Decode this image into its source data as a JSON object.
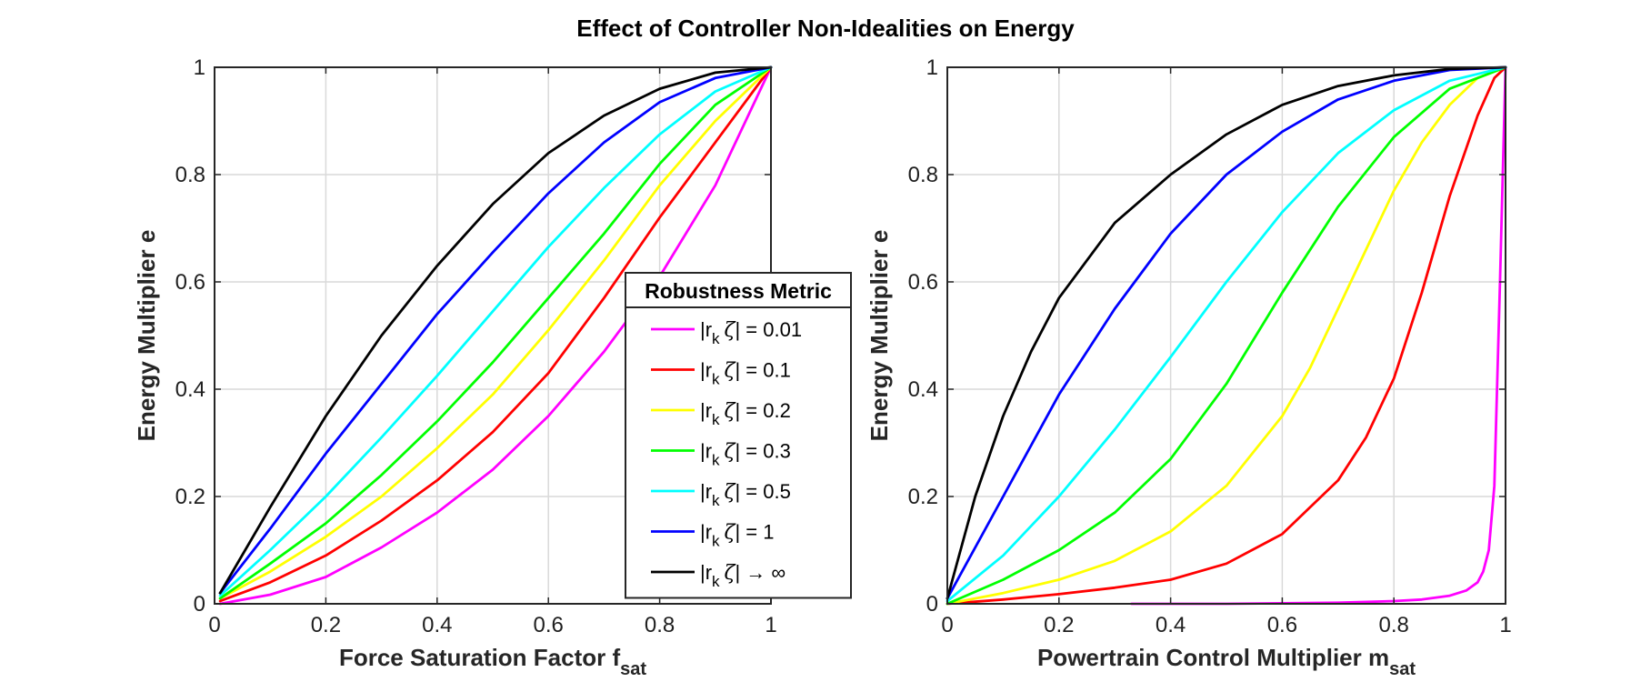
{
  "figure": {
    "title": "Effect of Controller Non-Idealities on Energy"
  },
  "legend": {
    "title": "Robustness Metric",
    "placement": "inside-left-panel-lower-right",
    "entries": [
      {
        "prefix": "|r",
        "sub": "k",
        "zeta": "ζ",
        "suffix": "| = 0.01",
        "color": "#ff00ff"
      },
      {
        "prefix": "|r",
        "sub": "k",
        "zeta": "ζ",
        "suffix": "| = 0.1",
        "color": "#ff0000"
      },
      {
        "prefix": "|r",
        "sub": "k",
        "zeta": "ζ",
        "suffix": "| = 0.2",
        "color": "#ffff00"
      },
      {
        "prefix": "|r",
        "sub": "k",
        "zeta": "ζ",
        "suffix": "| = 0.3",
        "color": "#00ff00"
      },
      {
        "prefix": "|r",
        "sub": "k",
        "zeta": "ζ",
        "suffix": "| = 0.5",
        "color": "#00ffff"
      },
      {
        "prefix": "|r",
        "sub": "k",
        "zeta": "ζ",
        "suffix": "| = 1",
        "color": "#0000ff"
      },
      {
        "prefix": "|r",
        "sub": "k",
        "zeta": "ζ",
        "suffix": "| → ∞",
        "color": "#000000"
      }
    ]
  },
  "chart_data": [
    {
      "type": "line",
      "xlabel_main": "Force Saturation Factor f",
      "xlabel_sub": "sat",
      "ylabel": "Energy Multiplier e",
      "xlim": [
        0,
        1
      ],
      "ylim": [
        0,
        1
      ],
      "xticks": [
        "0",
        "0.2",
        "0.4",
        "0.6",
        "0.8",
        "1"
      ],
      "yticks": [
        "0",
        "0.2",
        "0.4",
        "0.6",
        "0.8",
        "1"
      ],
      "grid": true,
      "series": [
        {
          "color": "#ff00ff",
          "x": [
            0.01,
            0.1,
            0.2,
            0.3,
            0.4,
            0.5,
            0.6,
            0.7,
            0.8,
            0.9,
            1.0
          ],
          "y": [
            0.0,
            0.017,
            0.05,
            0.105,
            0.17,
            0.25,
            0.35,
            0.47,
            0.61,
            0.78,
            1.0
          ]
        },
        {
          "color": "#ff0000",
          "x": [
            0.01,
            0.1,
            0.2,
            0.3,
            0.4,
            0.5,
            0.6,
            0.7,
            0.8,
            0.9,
            1.0
          ],
          "y": [
            0.005,
            0.04,
            0.09,
            0.155,
            0.23,
            0.32,
            0.43,
            0.57,
            0.72,
            0.86,
            1.0
          ]
        },
        {
          "color": "#ffff00",
          "x": [
            0.01,
            0.1,
            0.2,
            0.3,
            0.4,
            0.5,
            0.6,
            0.7,
            0.8,
            0.9,
            1.0
          ],
          "y": [
            0.01,
            0.06,
            0.125,
            0.2,
            0.29,
            0.39,
            0.51,
            0.64,
            0.78,
            0.9,
            1.0
          ]
        },
        {
          "color": "#00ff00",
          "x": [
            0.01,
            0.1,
            0.2,
            0.3,
            0.4,
            0.5,
            0.6,
            0.7,
            0.8,
            0.9,
            1.0
          ],
          "y": [
            0.01,
            0.075,
            0.15,
            0.24,
            0.34,
            0.45,
            0.57,
            0.69,
            0.82,
            0.93,
            1.0
          ]
        },
        {
          "color": "#00ffff",
          "x": [
            0.01,
            0.1,
            0.2,
            0.3,
            0.4,
            0.5,
            0.6,
            0.7,
            0.8,
            0.9,
            1.0
          ],
          "y": [
            0.015,
            0.1,
            0.2,
            0.31,
            0.425,
            0.545,
            0.665,
            0.775,
            0.875,
            0.955,
            1.0
          ]
        },
        {
          "color": "#0000ff",
          "x": [
            0.01,
            0.1,
            0.2,
            0.3,
            0.4,
            0.5,
            0.6,
            0.7,
            0.8,
            0.9,
            1.0
          ],
          "y": [
            0.02,
            0.14,
            0.28,
            0.41,
            0.54,
            0.655,
            0.765,
            0.86,
            0.935,
            0.98,
            1.0
          ]
        },
        {
          "color": "#000000",
          "x": [
            0.01,
            0.1,
            0.2,
            0.3,
            0.4,
            0.5,
            0.6,
            0.7,
            0.8,
            0.9,
            1.0
          ],
          "y": [
            0.02,
            0.18,
            0.35,
            0.5,
            0.63,
            0.745,
            0.84,
            0.91,
            0.96,
            0.99,
            1.0
          ]
        }
      ]
    },
    {
      "type": "line",
      "xlabel_main": "Powertrain Control Multiplier m",
      "xlabel_sub": "sat",
      "ylabel": "Energy Multiplier e",
      "xlim": [
        0,
        1
      ],
      "ylim": [
        0,
        1
      ],
      "xticks": [
        "0",
        "0.2",
        "0.4",
        "0.6",
        "0.8",
        "1"
      ],
      "yticks": [
        "0",
        "0.2",
        "0.4",
        "0.6",
        "0.8",
        "1"
      ],
      "grid": true,
      "series": [
        {
          "color": "#ff00ff",
          "x": [
            0.33,
            0.5,
            0.6,
            0.7,
            0.8,
            0.85,
            0.9,
            0.93,
            0.95,
            0.96,
            0.97,
            0.98,
            0.99,
            1.0
          ],
          "y": [
            0.0,
            0.0,
            0.001,
            0.002,
            0.005,
            0.008,
            0.015,
            0.025,
            0.04,
            0.06,
            0.1,
            0.22,
            0.6,
            1.0
          ]
        },
        {
          "color": "#ff0000",
          "x": [
            0.0,
            0.1,
            0.2,
            0.3,
            0.4,
            0.5,
            0.6,
            0.7,
            0.75,
            0.8,
            0.85,
            0.9,
            0.95,
            0.98,
            1.0
          ],
          "y": [
            0.0,
            0.008,
            0.018,
            0.03,
            0.045,
            0.075,
            0.13,
            0.23,
            0.31,
            0.42,
            0.58,
            0.76,
            0.91,
            0.98,
            1.0
          ]
        },
        {
          "color": "#ffff00",
          "x": [
            0.0,
            0.1,
            0.2,
            0.3,
            0.4,
            0.5,
            0.6,
            0.65,
            0.7,
            0.75,
            0.8,
            0.85,
            0.9,
            0.95,
            1.0
          ],
          "y": [
            0.0,
            0.02,
            0.045,
            0.08,
            0.135,
            0.22,
            0.35,
            0.44,
            0.55,
            0.66,
            0.77,
            0.86,
            0.93,
            0.98,
            1.0
          ]
        },
        {
          "color": "#00ff00",
          "x": [
            0.0,
            0.1,
            0.2,
            0.3,
            0.4,
            0.5,
            0.6,
            0.7,
            0.8,
            0.9,
            1.0
          ],
          "y": [
            0.0,
            0.045,
            0.1,
            0.17,
            0.27,
            0.41,
            0.58,
            0.74,
            0.87,
            0.96,
            1.0
          ]
        },
        {
          "color": "#00ffff",
          "x": [
            0.0,
            0.1,
            0.2,
            0.3,
            0.4,
            0.5,
            0.6,
            0.7,
            0.8,
            0.9,
            1.0
          ],
          "y": [
            0.005,
            0.09,
            0.2,
            0.325,
            0.46,
            0.6,
            0.73,
            0.84,
            0.92,
            0.975,
            1.0
          ]
        },
        {
          "color": "#0000ff",
          "x": [
            0.0,
            0.1,
            0.2,
            0.3,
            0.4,
            0.5,
            0.6,
            0.7,
            0.8,
            0.9,
            1.0
          ],
          "y": [
            0.01,
            0.2,
            0.39,
            0.55,
            0.69,
            0.8,
            0.88,
            0.94,
            0.975,
            0.995,
            1.0
          ]
        },
        {
          "color": "#000000",
          "x": [
            0.0,
            0.05,
            0.1,
            0.15,
            0.2,
            0.3,
            0.4,
            0.5,
            0.6,
            0.7,
            0.8,
            0.9,
            1.0
          ],
          "y": [
            0.01,
            0.2,
            0.35,
            0.47,
            0.57,
            0.71,
            0.8,
            0.875,
            0.93,
            0.965,
            0.985,
            0.997,
            1.0
          ]
        }
      ]
    }
  ]
}
